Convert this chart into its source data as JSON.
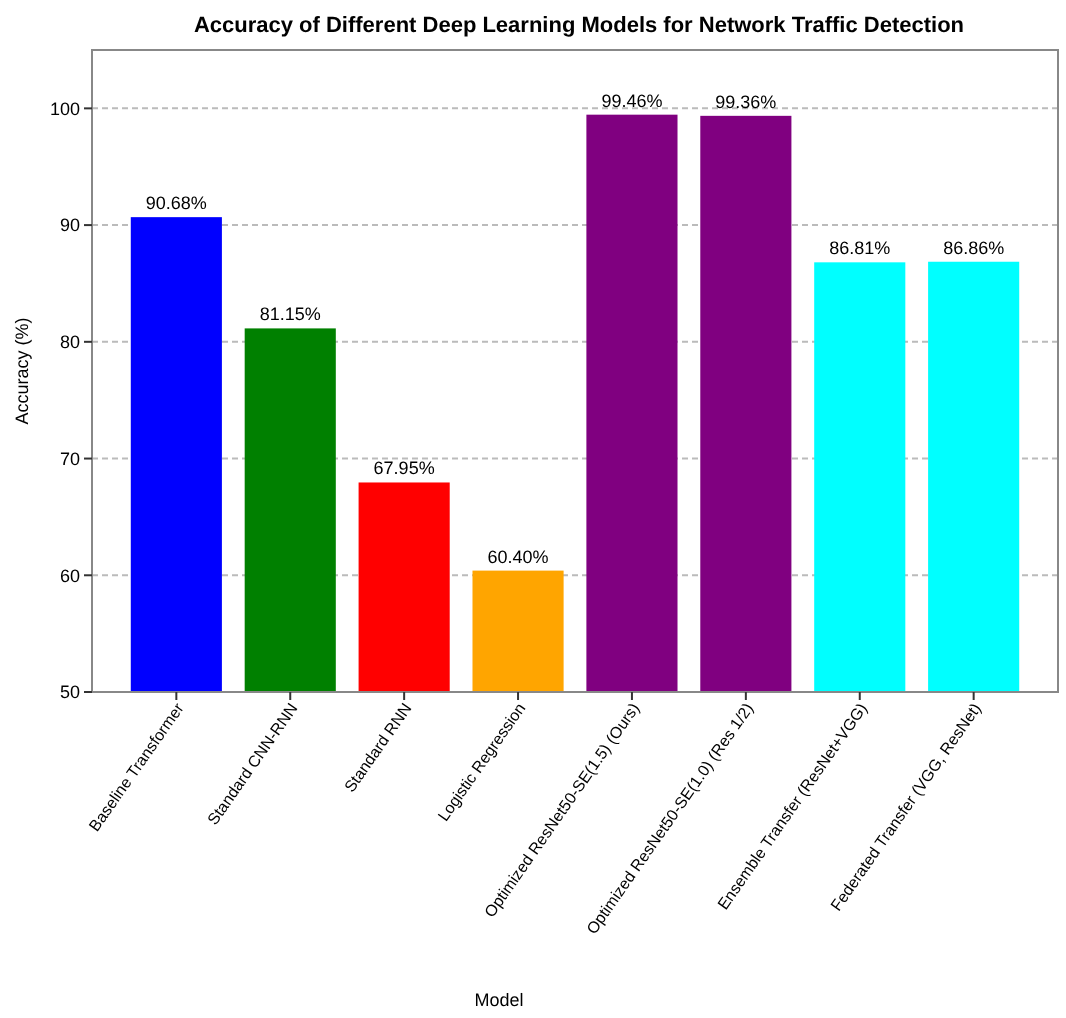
{
  "chart_data": {
    "type": "bar",
    "title": "Accuracy of Different Deep Learning Models for Network Traffic Detection",
    "xlabel": "Model",
    "ylabel": "Accuracy (%)",
    "categories": [
      "Baseline Transformer",
      "Standard CNN-RNN",
      "Standard RNN",
      "Logistic Regression",
      "Optimized ResNet50-SE(1.5) (Ours)",
      "Optimized ResNet50-SE(1.0) (Res 1/2)",
      "Ensemble Transfer (ResNet+VGG)",
      "Federated Transfer (VGG, ResNet)"
    ],
    "values": [
      90.68,
      81.15,
      67.95,
      60.4,
      99.46,
      99.36,
      86.81,
      86.86
    ],
    "value_labels": [
      "90.68%",
      "81.15%",
      "67.95%",
      "60.40%",
      "99.46%",
      "99.36%",
      "86.81%",
      "86.86%"
    ],
    "colors": [
      "#0000ff",
      "#008000",
      "#ff0000",
      "#ffa500",
      "#800080",
      "#800080",
      "#00ffff",
      "#00ffff"
    ],
    "ylim": [
      50,
      105
    ],
    "yticks": [
      50,
      60,
      70,
      80,
      90,
      100
    ],
    "grid": "y"
  }
}
